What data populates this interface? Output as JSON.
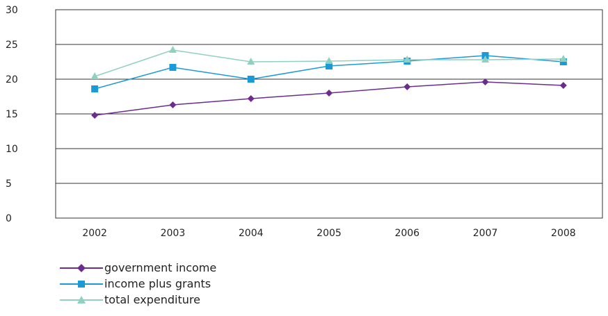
{
  "chart_data": {
    "type": "line",
    "categories": [
      "2002",
      "2003",
      "2004",
      "2005",
      "2006",
      "2007",
      "2008"
    ],
    "ylim": [
      0,
      30
    ],
    "yticks": [
      "0",
      "5",
      "10",
      "15",
      "20",
      "25",
      "30"
    ],
    "grid": true,
    "legend_position": "bottom-left",
    "series": [
      {
        "name": "government income",
        "color": "#6b2c8e",
        "marker": "diamond",
        "values": [
          14.8,
          16.3,
          17.2,
          18.0,
          18.9,
          19.6,
          19.1
        ]
      },
      {
        "name": "income plus grants",
        "color": "#1a9ad6",
        "marker": "square",
        "values": [
          18.6,
          21.7,
          20.0,
          21.9,
          22.6,
          23.4,
          22.5
        ]
      },
      {
        "name": "total expenditure",
        "color": "#8fd0c0",
        "marker": "triangle",
        "values": [
          20.4,
          24.2,
          22.5,
          22.6,
          22.8,
          22.8,
          22.9
        ]
      }
    ]
  }
}
